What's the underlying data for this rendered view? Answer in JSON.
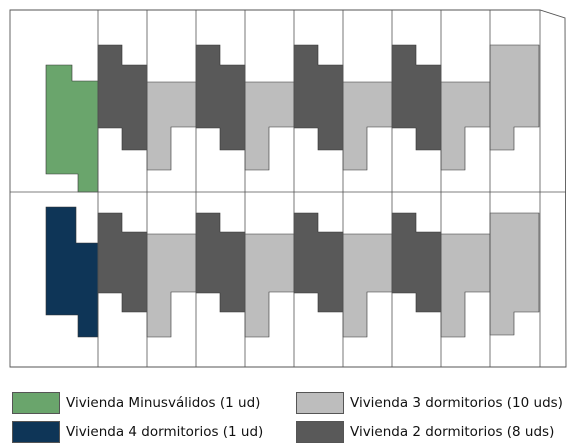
{
  "colors": {
    "minusvalidos": "#6aa56c",
    "cuatro_dormitorios": "#0e3557",
    "tres_dormitorios": "#bdbdbd",
    "dos_dormitorios": "#595959",
    "outline": "#555555"
  },
  "legend": [
    {
      "key": "minusvalidos",
      "label": "Vivienda Minusválidos (1 ud)"
    },
    {
      "key": "tres_dormitorios",
      "label": "Vivienda 3 dormitorios (10 uds)"
    },
    {
      "key": "cuatro_dormitorios",
      "label": "Vivienda 4 dormitorios (1 ud)"
    },
    {
      "key": "dos_dormitorios",
      "label": "Vivienda 2 dormitorios (8 uds)"
    }
  ],
  "rows": [
    {
      "name": "top",
      "units": [
        "minusvalidos",
        "dos_dormitorios",
        "tres_dormitorios",
        "dos_dormitorios",
        "tres_dormitorios",
        "dos_dormitorios",
        "tres_dormitorios",
        "dos_dormitorios",
        "tres_dormitorios",
        "tres_dormitorios"
      ]
    },
    {
      "name": "bottom",
      "units": [
        "cuatro_dormitorios",
        "dos_dormitorios",
        "tres_dormitorios",
        "dos_dormitorios",
        "tres_dormitorios",
        "dos_dormitorios",
        "tres_dormitorios",
        "dos_dormitorios",
        "tres_dormitorios",
        "tres_dormitorios"
      ]
    }
  ]
}
